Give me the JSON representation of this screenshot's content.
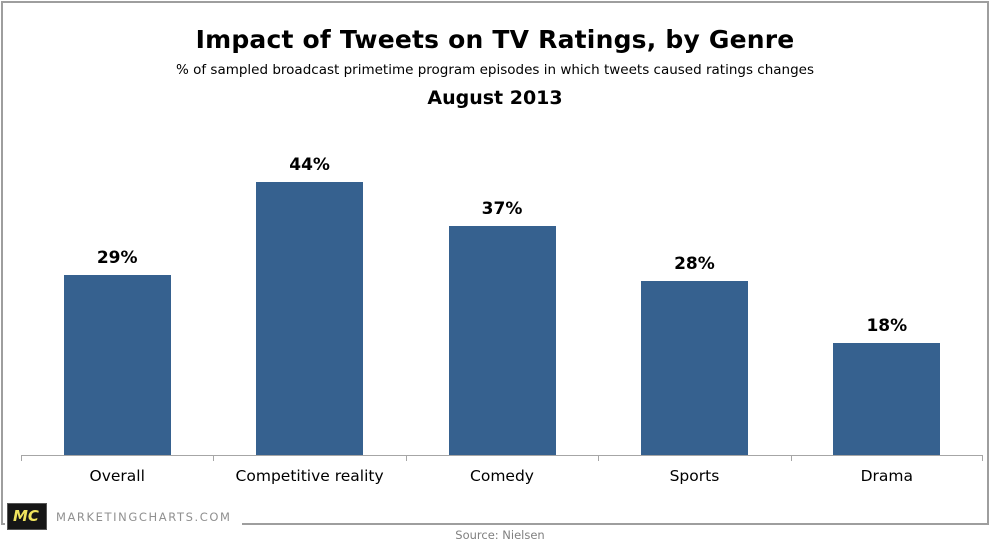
{
  "header": {
    "title": "Impact of Tweets on TV Ratings, by Genre",
    "subtitle": "% of sampled broadcast primetime program episodes in which tweets caused ratings changes",
    "period": "August 2013"
  },
  "chart_data": {
    "type": "bar",
    "categories": [
      "Overall",
      "Competitive reality",
      "Comedy",
      "Sports",
      "Drama"
    ],
    "values": [
      29,
      44,
      37,
      28,
      18
    ],
    "data_labels": [
      "29%",
      "44%",
      "37%",
      "28%",
      "18%"
    ],
    "title": "Impact of Tweets on TV Ratings, by Genre",
    "xlabel": "",
    "ylabel": "",
    "ylim": [
      0,
      48
    ],
    "grid": false,
    "legend": false,
    "bar_color": "#36618F",
    "axis_color": "#a6a6a6"
  },
  "branding": {
    "logo_text": "MC",
    "site_text": "MARKETINGCHARTS.COM",
    "logo_bg": "#161616",
    "logo_color": "#f0e45e"
  },
  "footer": {
    "source": "Source: Nielsen"
  }
}
